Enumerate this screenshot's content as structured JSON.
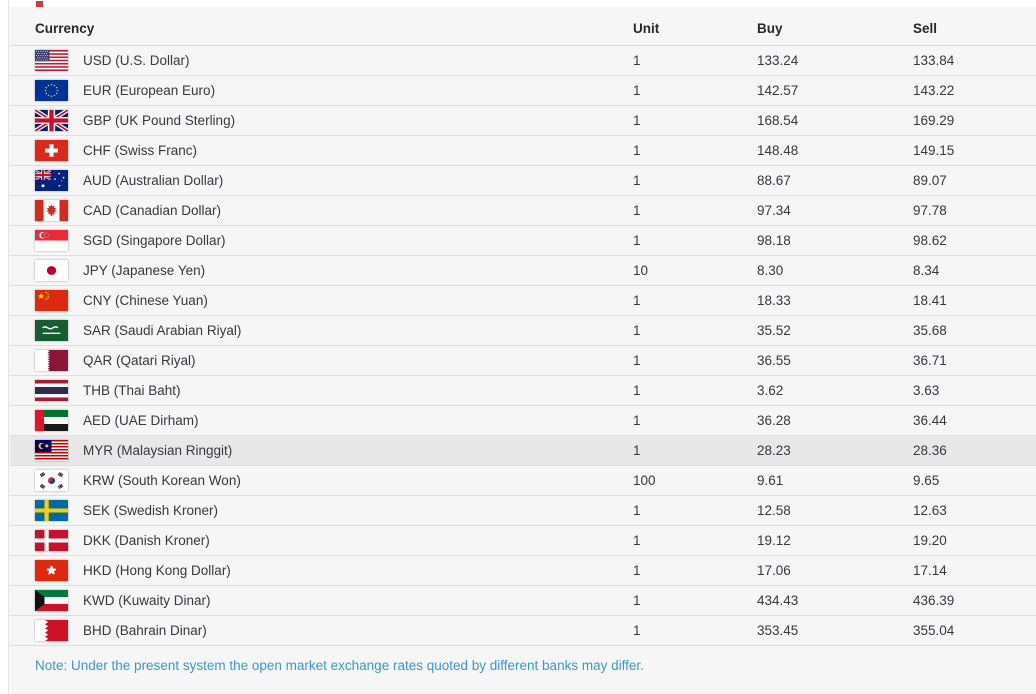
{
  "table": {
    "columns": [
      "Currency",
      "Unit",
      "Buy",
      "Sell"
    ],
    "rows": [
      {
        "code_label": "USD (U.S. Dollar)",
        "flag": "us-flag-icon",
        "unit": "1",
        "buy": "133.24",
        "sell": "133.84",
        "highlighted": false
      },
      {
        "code_label": "EUR (European Euro)",
        "flag": "eu-flag-icon",
        "unit": "1",
        "buy": "142.57",
        "sell": "143.22",
        "highlighted": false
      },
      {
        "code_label": "GBP (UK Pound Sterling)",
        "flag": "uk-flag-icon",
        "unit": "1",
        "buy": "168.54",
        "sell": "169.29",
        "highlighted": false
      },
      {
        "code_label": "CHF (Swiss Franc)",
        "flag": "switzerland-flag-icon",
        "unit": "1",
        "buy": "148.48",
        "sell": "149.15",
        "highlighted": false
      },
      {
        "code_label": "AUD (Australian Dollar)",
        "flag": "australia-flag-icon",
        "unit": "1",
        "buy": "88.67",
        "sell": "89.07",
        "highlighted": false
      },
      {
        "code_label": "CAD (Canadian Dollar)",
        "flag": "canada-flag-icon",
        "unit": "1",
        "buy": "97.34",
        "sell": "97.78",
        "highlighted": false
      },
      {
        "code_label": "SGD (Singapore Dollar)",
        "flag": "singapore-flag-icon",
        "unit": "1",
        "buy": "98.18",
        "sell": "98.62",
        "highlighted": false
      },
      {
        "code_label": "JPY (Japanese Yen)",
        "flag": "japan-flag-icon",
        "unit": "10",
        "buy": "8.30",
        "sell": "8.34",
        "highlighted": false
      },
      {
        "code_label": "CNY (Chinese Yuan)",
        "flag": "china-flag-icon",
        "unit": "1",
        "buy": "18.33",
        "sell": "18.41",
        "highlighted": false
      },
      {
        "code_label": "SAR (Saudi Arabian Riyal)",
        "flag": "saudi-arabia-flag-icon",
        "unit": "1",
        "buy": "35.52",
        "sell": "35.68",
        "highlighted": false
      },
      {
        "code_label": "QAR (Qatari Riyal)",
        "flag": "qatar-flag-icon",
        "unit": "1",
        "buy": "36.55",
        "sell": "36.71",
        "highlighted": false
      },
      {
        "code_label": "THB (Thai Baht)",
        "flag": "thailand-flag-icon",
        "unit": "1",
        "buy": "3.62",
        "sell": "3.63",
        "highlighted": false
      },
      {
        "code_label": "AED (UAE Dirham)",
        "flag": "uae-flag-icon",
        "unit": "1",
        "buy": "36.28",
        "sell": "36.44",
        "highlighted": false
      },
      {
        "code_label": "MYR (Malaysian Ringgit)",
        "flag": "malaysia-flag-icon",
        "unit": "1",
        "buy": "28.23",
        "sell": "28.36",
        "highlighted": true
      },
      {
        "code_label": "KRW (South Korean Won)",
        "flag": "south-korea-flag-icon",
        "unit": "100",
        "buy": "9.61",
        "sell": "9.65",
        "highlighted": false
      },
      {
        "code_label": "SEK (Swedish Kroner)",
        "flag": "sweden-flag-icon",
        "unit": "1",
        "buy": "12.58",
        "sell": "12.63",
        "highlighted": false
      },
      {
        "code_label": "DKK (Danish Kroner)",
        "flag": "denmark-flag-icon",
        "unit": "1",
        "buy": "19.12",
        "sell": "19.20",
        "highlighted": false
      },
      {
        "code_label": "HKD (Hong Kong Dollar)",
        "flag": "hong-kong-flag-icon",
        "unit": "1",
        "buy": "17.06",
        "sell": "17.14",
        "highlighted": false
      },
      {
        "code_label": "KWD (Kuwaity Dinar)",
        "flag": "kuwait-flag-icon",
        "unit": "1",
        "buy": "434.43",
        "sell": "436.39",
        "highlighted": false
      },
      {
        "code_label": "BHD (Bahrain Dinar)",
        "flag": "bahrain-flag-icon",
        "unit": "1",
        "buy": "353.45",
        "sell": "355.04",
        "highlighted": false
      }
    ]
  },
  "note": "Note: Under the present system the open market exchange rates quoted by different banks may differ.",
  "colors": {
    "background": "#f6f6f7",
    "row_separator": "#dddde2",
    "highlight_row": "#e8e8e9",
    "note_blue": "#3b97d3",
    "header_text": "#27272e"
  }
}
